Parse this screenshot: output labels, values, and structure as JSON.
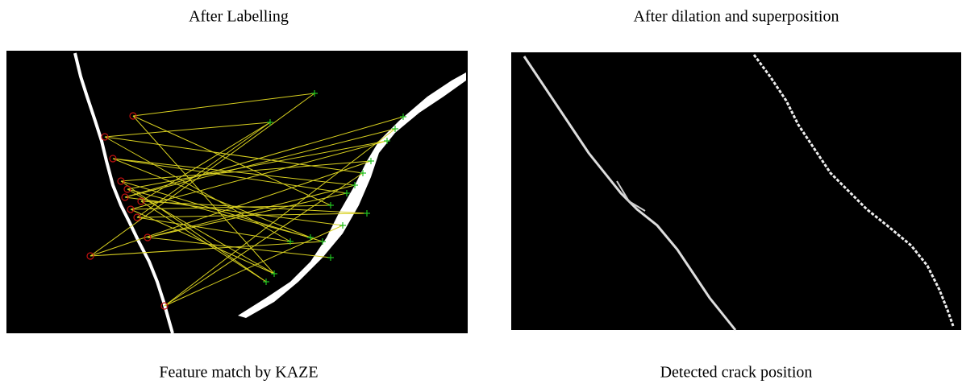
{
  "panels": [
    {
      "caption_top": "After Labelling",
      "caption_bottom": "Feature match by KAZE"
    },
    {
      "caption_top": "After dilation and superposition",
      "caption_bottom": "Detected crack position"
    }
  ]
}
